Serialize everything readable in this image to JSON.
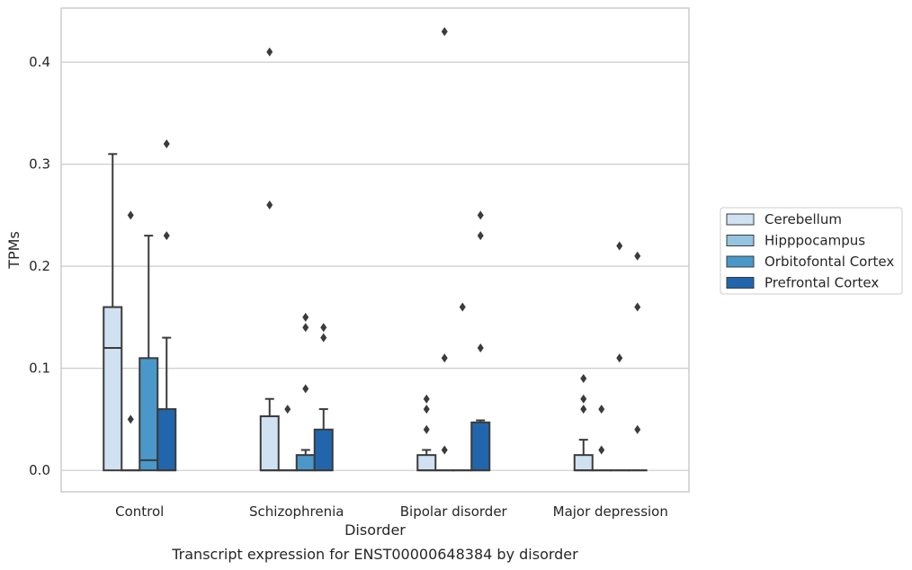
{
  "chart_data": {
    "type": "boxplot",
    "xlabel": "Disorder",
    "ylabel": "TPMs",
    "caption": "Transcript expression for ENST00000648384 by disorder",
    "ylim": [
      -0.021,
      0.453
    ],
    "yticks": [
      0.0,
      0.1,
      0.2,
      0.3,
      0.4
    ],
    "ytick_labels": [
      "0.0",
      "0.1",
      "0.2",
      "0.3",
      "0.4"
    ],
    "categories": [
      "Control",
      "Schizophrenia",
      "Bipolar disorder",
      "Major depression"
    ],
    "grid": true,
    "legend_position": "right",
    "series": [
      {
        "name": "Cerebellum",
        "color": "#d0e1f2",
        "boxes": [
          {
            "q1": 0.0,
            "median": 0.12,
            "q3": 0.16,
            "whisker_low": 0.0,
            "whisker_high": 0.31,
            "outliers": []
          },
          {
            "q1": 0.0,
            "median": 0.0,
            "q3": 0.053,
            "whisker_low": 0.0,
            "whisker_high": 0.07,
            "outliers": [
              0.41,
              0.26
            ]
          },
          {
            "q1": 0.0,
            "median": 0.0,
            "q3": 0.015,
            "whisker_low": 0.0,
            "whisker_high": 0.02,
            "outliers": [
              0.07,
              0.06,
              0.04
            ]
          },
          {
            "q1": 0.0,
            "median": 0.0,
            "q3": 0.015,
            "whisker_low": 0.0,
            "whisker_high": 0.03,
            "outliers": [
              0.09,
              0.07,
              0.06
            ]
          }
        ]
      },
      {
        "name": "Hipppocampus",
        "color": "#94c4df",
        "boxes": [
          {
            "q1": 0.0,
            "median": 0.0,
            "q3": 0.0,
            "whisker_low": 0.0,
            "whisker_high": 0.0,
            "outliers": [
              0.25,
              0.05
            ]
          },
          {
            "q1": 0.0,
            "median": 0.0,
            "q3": 0.0,
            "whisker_low": 0.0,
            "whisker_high": 0.0,
            "outliers": [
              0.06
            ]
          },
          {
            "q1": 0.0,
            "median": 0.0,
            "q3": 0.0,
            "whisker_low": 0.0,
            "whisker_high": 0.0,
            "outliers": [
              0.43,
              0.11,
              0.02
            ]
          },
          {
            "q1": 0.0,
            "median": 0.0,
            "q3": 0.0,
            "whisker_low": 0.0,
            "whisker_high": 0.0,
            "outliers": [
              0.06,
              0.02
            ]
          }
        ]
      },
      {
        "name": "Orbitofontal Cortex",
        "color": "#4a98c9",
        "boxes": [
          {
            "q1": 0.0,
            "median": 0.01,
            "q3": 0.11,
            "whisker_low": 0.0,
            "whisker_high": 0.23,
            "outliers": []
          },
          {
            "q1": 0.0,
            "median": 0.0,
            "q3": 0.015,
            "whisker_low": 0.0,
            "whisker_high": 0.02,
            "outliers": [
              0.15,
              0.14,
              0.08
            ]
          },
          {
            "q1": 0.0,
            "median": 0.0,
            "q3": 0.0,
            "whisker_low": 0.0,
            "whisker_high": 0.0,
            "outliers": [
              0.16
            ]
          },
          {
            "q1": 0.0,
            "median": 0.0,
            "q3": 0.0,
            "whisker_low": 0.0,
            "whisker_high": 0.0,
            "outliers": [
              0.22,
              0.11
            ]
          }
        ]
      },
      {
        "name": "Prefrontal Cortex",
        "color": "#2166ac",
        "boxes": [
          {
            "q1": 0.0,
            "median": 0.0,
            "q3": 0.06,
            "whisker_low": 0.0,
            "whisker_high": 0.13,
            "outliers": [
              0.32,
              0.23
            ]
          },
          {
            "q1": 0.0,
            "median": 0.0,
            "q3": 0.04,
            "whisker_low": 0.0,
            "whisker_high": 0.06,
            "outliers": [
              0.14,
              0.13
            ]
          },
          {
            "q1": 0.0,
            "median": 0.0,
            "q3": 0.047,
            "whisker_low": 0.0,
            "whisker_high": 0.049,
            "outliers": [
              0.25,
              0.23,
              0.12
            ]
          },
          {
            "q1": 0.0,
            "median": 0.0,
            "q3": 0.0,
            "whisker_low": 0.0,
            "whisker_high": 0.0,
            "outliers": [
              0.21,
              0.16,
              0.04
            ]
          }
        ]
      }
    ]
  }
}
